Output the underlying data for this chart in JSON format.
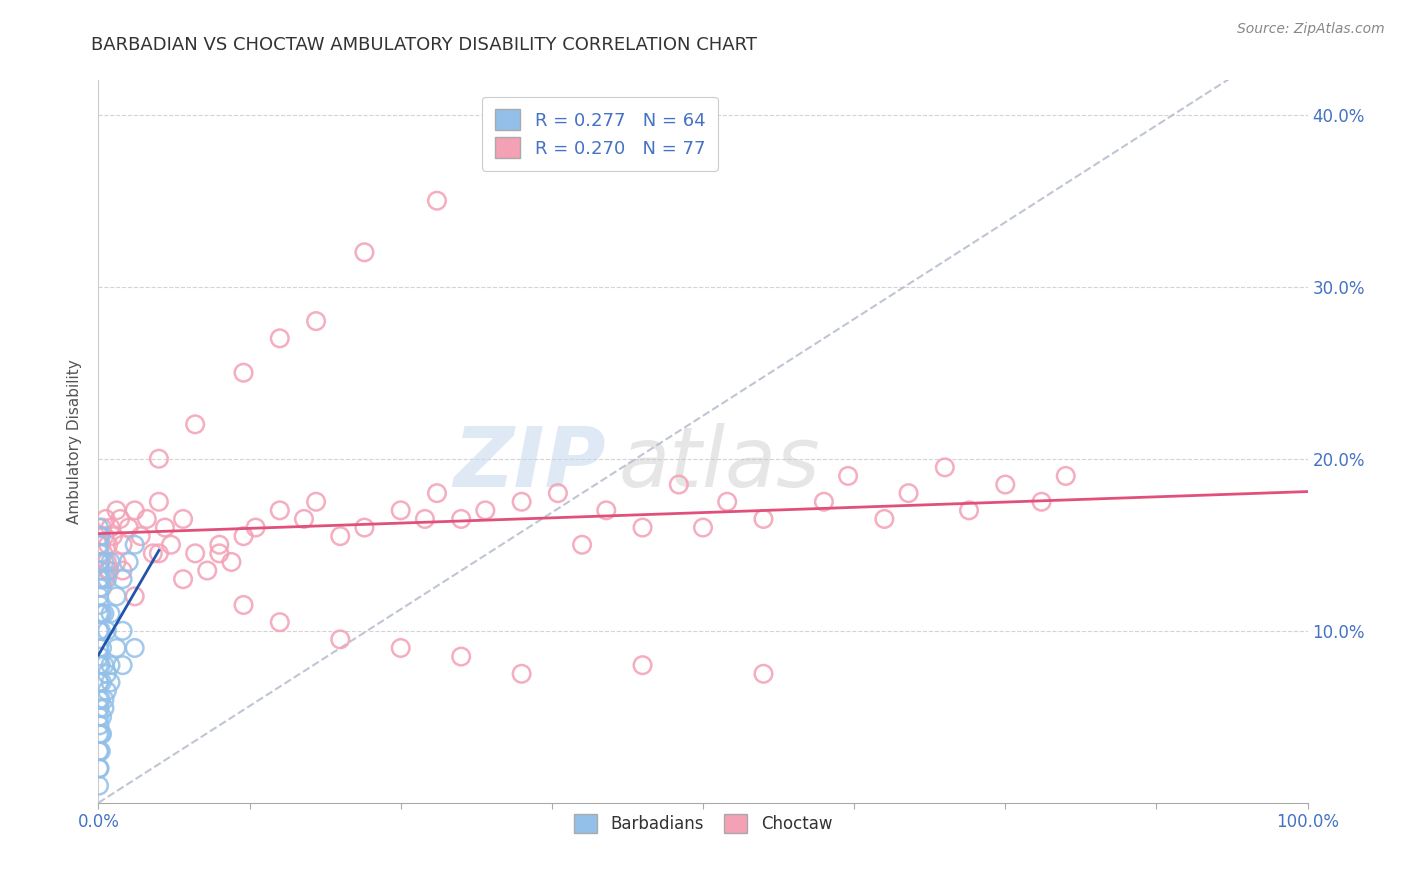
{
  "title": "BARBADIAN VS CHOCTAW AMBULATORY DISABILITY CORRELATION CHART",
  "source": "Source: ZipAtlas.com",
  "ylabel": "Ambulatory Disability",
  "barbadian_R": 0.277,
  "barbadian_N": 64,
  "choctaw_R": 0.27,
  "choctaw_N": 77,
  "barbadian_color": "#92c0e8",
  "choctaw_color": "#f4a0b5",
  "barbadian_line_color": "#2255aa",
  "choctaw_line_color": "#e0507a",
  "background_color": "#ffffff",
  "grid_color": "#d0d0d0",
  "x_min": 0,
  "x_max": 100,
  "y_min": 0,
  "y_max": 42,
  "barbadian_x": [
    0.05,
    0.05,
    0.05,
    0.05,
    0.05,
    0.05,
    0.05,
    0.05,
    0.05,
    0.05,
    0.1,
    0.1,
    0.1,
    0.1,
    0.1,
    0.1,
    0.1,
    0.1,
    0.2,
    0.2,
    0.2,
    0.2,
    0.2,
    0.2,
    0.3,
    0.3,
    0.3,
    0.3,
    0.5,
    0.5,
    0.5,
    0.7,
    0.7,
    1.0,
    1.0,
    1.5,
    2.0,
    2.5,
    3.0,
    0.05,
    0.05,
    0.05,
    0.05,
    0.05,
    0.1,
    0.1,
    0.1,
    0.2,
    0.2,
    0.3,
    0.5,
    0.7,
    1.0,
    1.5,
    2.0,
    0.05,
    0.1,
    0.2,
    0.3,
    0.5,
    0.7,
    1.0,
    2.0,
    3.0
  ],
  "barbadian_y": [
    5.0,
    6.0,
    7.0,
    8.0,
    9.0,
    10.0,
    11.0,
    12.0,
    13.0,
    14.0,
    5.5,
    7.0,
    8.5,
    10.0,
    11.5,
    12.5,
    13.5,
    14.5,
    6.0,
    8.0,
    10.0,
    11.0,
    13.0,
    14.0,
    7.0,
    9.0,
    11.0,
    13.0,
    8.0,
    11.0,
    14.0,
    10.0,
    13.0,
    11.0,
    14.0,
    12.0,
    13.0,
    14.0,
    15.0,
    2.0,
    3.0,
    4.0,
    15.0,
    16.0,
    3.0,
    4.5,
    15.5,
    4.0,
    15.5,
    5.0,
    6.0,
    7.5,
    8.0,
    9.0,
    10.0,
    1.0,
    2.0,
    3.0,
    4.0,
    5.5,
    6.5,
    7.0,
    8.0,
    9.0
  ],
  "choctaw_x": [
    0.1,
    0.2,
    0.3,
    0.4,
    0.5,
    0.6,
    0.7,
    0.8,
    0.9,
    1.0,
    1.2,
    1.5,
    1.8,
    2.0,
    2.5,
    3.0,
    3.5,
    4.0,
    4.5,
    5.0,
    5.5,
    6.0,
    7.0,
    8.0,
    9.0,
    10.0,
    11.0,
    12.0,
    13.0,
    15.0,
    17.0,
    18.0,
    20.0,
    22.0,
    25.0,
    27.0,
    28.0,
    30.0,
    32.0,
    35.0,
    38.0,
    40.0,
    42.0,
    45.0,
    48.0,
    50.0,
    52.0,
    55.0,
    60.0,
    62.0,
    65.0,
    67.0,
    70.0,
    72.0,
    75.0,
    78.0,
    80.0,
    0.3,
    0.5,
    0.8,
    1.5,
    2.0,
    3.0,
    5.0,
    7.0,
    10.0,
    12.0,
    15.0,
    20.0,
    25.0,
    30.0,
    35.0,
    45.0,
    55.0
  ],
  "choctaw_y": [
    14.0,
    15.0,
    16.0,
    14.5,
    15.5,
    16.5,
    14.0,
    15.0,
    13.5,
    16.0,
    15.5,
    17.0,
    16.5,
    15.0,
    16.0,
    17.0,
    15.5,
    16.5,
    14.5,
    17.5,
    16.0,
    15.0,
    16.5,
    14.5,
    13.5,
    15.0,
    14.0,
    15.5,
    16.0,
    17.0,
    16.5,
    17.5,
    15.5,
    16.0,
    17.0,
    16.5,
    18.0,
    16.5,
    17.0,
    17.5,
    18.0,
    15.0,
    17.0,
    16.0,
    18.5,
    16.0,
    17.5,
    16.5,
    17.5,
    19.0,
    16.5,
    18.0,
    19.5,
    17.0,
    18.5,
    17.5,
    19.0,
    12.5,
    13.0,
    13.5,
    14.0,
    13.5,
    12.0,
    14.5,
    13.0,
    14.5,
    11.5,
    10.5,
    9.5,
    9.0,
    8.5,
    7.5,
    8.0,
    7.5
  ],
  "choctaw_y_high": [
    35.0,
    32.0,
    28.0,
    27.0,
    25.0,
    22.0,
    20.0
  ],
  "choctaw_x_high": [
    28.0,
    22.0,
    18.0,
    15.0,
    12.0,
    8.0,
    5.0
  ]
}
